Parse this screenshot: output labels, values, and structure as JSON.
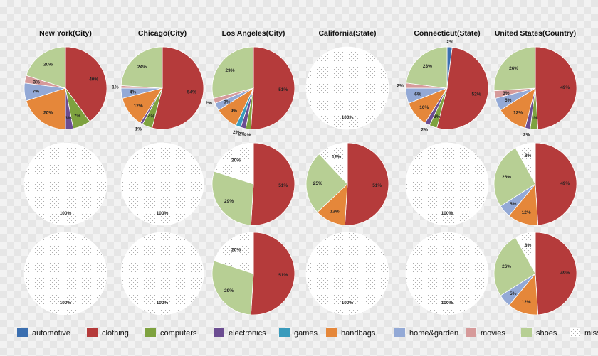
{
  "chart_data": {
    "type": "pie",
    "columns": [
      "New York(City)",
      "Chicago(City)",
      "Los Angeles(City)",
      "California(State)",
      "Connecticut(State)",
      "United States(Country)"
    ],
    "categories": [
      {
        "key": "automotive",
        "label": "automotive",
        "color": "#3b6fb0"
      },
      {
        "key": "clothing",
        "label": "clothing",
        "color": "#b53b3b"
      },
      {
        "key": "computers",
        "label": "computers",
        "color": "#7ea23f"
      },
      {
        "key": "electronics",
        "label": "electronics",
        "color": "#6c4d92"
      },
      {
        "key": "games",
        "label": "games",
        "color": "#3a9bbc"
      },
      {
        "key": "handbags",
        "label": "handbags",
        "color": "#e5873a"
      },
      {
        "key": "homegarden",
        "label": "home&garden",
        "color": "#93a9d6"
      },
      {
        "key": "movies",
        "label": "movies",
        "color": "#d69a9a"
      },
      {
        "key": "shoes",
        "label": "shoes",
        "color": "#b7cf94"
      },
      {
        "key": "missing",
        "label": "missing",
        "color": "#ffffff"
      }
    ],
    "pies": [
      {
        "row": 0,
        "col": 0,
        "slices": [
          {
            "cat": "clothing",
            "value": 40,
            "label": "40%"
          },
          {
            "cat": "computers",
            "value": 7,
            "label": "7%"
          },
          {
            "cat": "electronics",
            "value": 3,
            "label": "3%"
          },
          {
            "cat": "handbags",
            "value": 20,
            "label": "20%"
          },
          {
            "cat": "homegarden",
            "value": 7,
            "label": "7%"
          },
          {
            "cat": "movies",
            "value": 3,
            "label": "3%"
          },
          {
            "cat": "shoes",
            "value": 20,
            "label": "20%"
          }
        ]
      },
      {
        "row": 0,
        "col": 1,
        "slices": [
          {
            "cat": "clothing",
            "value": 54,
            "label": "54%"
          },
          {
            "cat": "computers",
            "value": 4,
            "label": "4%"
          },
          {
            "cat": "electronics",
            "value": 1,
            "label": "1%"
          },
          {
            "cat": "handbags",
            "value": 12,
            "label": "12%"
          },
          {
            "cat": "homegarden",
            "value": 4,
            "label": "4%"
          },
          {
            "cat": "movies",
            "value": 1,
            "label": "1%"
          },
          {
            "cat": "shoes",
            "value": 24,
            "label": "24%"
          }
        ]
      },
      {
        "row": 0,
        "col": 2,
        "slices": [
          {
            "cat": "clothing",
            "value": 51,
            "label": "51%"
          },
          {
            "cat": "computers",
            "value": 2,
            "label": "2%"
          },
          {
            "cat": "electronics",
            "value": 2,
            "label": "2%"
          },
          {
            "cat": "games",
            "value": 2,
            "label": "2%"
          },
          {
            "cat": "handbags",
            "value": 9,
            "label": "9%"
          },
          {
            "cat": "homegarden",
            "value": 3,
            "label": "3%"
          },
          {
            "cat": "movies",
            "value": 2,
            "label": "2%"
          },
          {
            "cat": "shoes",
            "value": 29,
            "label": "29%"
          }
        ]
      },
      {
        "row": 0,
        "col": 3,
        "slices": [
          {
            "cat": "missing",
            "value": 100,
            "label": "100%"
          }
        ]
      },
      {
        "row": 0,
        "col": 4,
        "slices": [
          {
            "cat": "automotive",
            "value": 2,
            "label": "2%"
          },
          {
            "cat": "clothing",
            "value": 52,
            "label": "52%"
          },
          {
            "cat": "computers",
            "value": 3,
            "label": "3%"
          },
          {
            "cat": "electronics",
            "value": 2,
            "label": "2%"
          },
          {
            "cat": "handbags",
            "value": 10,
            "label": "10%"
          },
          {
            "cat": "homegarden",
            "value": 6,
            "label": "6%"
          },
          {
            "cat": "movies",
            "value": 2,
            "label": "2%"
          },
          {
            "cat": "shoes",
            "value": 23,
            "label": "23%"
          }
        ]
      },
      {
        "row": 0,
        "col": 5,
        "slices": [
          {
            "cat": "clothing",
            "value": 49,
            "label": "49%"
          },
          {
            "cat": "computers",
            "value": 3,
            "label": "3%"
          },
          {
            "cat": "electronics",
            "value": 2,
            "label": "2%"
          },
          {
            "cat": "handbags",
            "value": 12,
            "label": "12%"
          },
          {
            "cat": "homegarden",
            "value": 5,
            "label": "5%"
          },
          {
            "cat": "movies",
            "value": 3,
            "label": "3%"
          },
          {
            "cat": "shoes",
            "value": 26,
            "label": "26%"
          }
        ]
      },
      {
        "row": 1,
        "col": 0,
        "slices": [
          {
            "cat": "missing",
            "value": 100,
            "label": "100%"
          }
        ]
      },
      {
        "row": 1,
        "col": 1,
        "slices": [
          {
            "cat": "missing",
            "value": 100,
            "label": "100%"
          }
        ]
      },
      {
        "row": 1,
        "col": 2,
        "slices": [
          {
            "cat": "clothing",
            "value": 51,
            "label": "51%"
          },
          {
            "cat": "shoes",
            "value": 29,
            "label": "29%"
          },
          {
            "cat": "missing",
            "value": 20,
            "label": "20%"
          }
        ]
      },
      {
        "row": 1,
        "col": 3,
        "slices": [
          {
            "cat": "clothing",
            "value": 51,
            "label": "51%"
          },
          {
            "cat": "handbags",
            "value": 12,
            "label": "12%"
          },
          {
            "cat": "shoes",
            "value": 25,
            "label": "25%"
          },
          {
            "cat": "missing",
            "value": 12,
            "label": "12%"
          }
        ]
      },
      {
        "row": 1,
        "col": 4,
        "slices": [
          {
            "cat": "missing",
            "value": 100,
            "label": "100%"
          }
        ]
      },
      {
        "row": 1,
        "col": 5,
        "slices": [
          {
            "cat": "clothing",
            "value": 49,
            "label": "49%"
          },
          {
            "cat": "handbags",
            "value": 12,
            "label": "12%"
          },
          {
            "cat": "homegarden",
            "value": 5,
            "label": "5%"
          },
          {
            "cat": "shoes",
            "value": 26,
            "label": "26%"
          },
          {
            "cat": "missing",
            "value": 8,
            "label": "8%"
          }
        ]
      },
      {
        "row": 2,
        "col": 0,
        "slices": [
          {
            "cat": "missing",
            "value": 100,
            "label": "100%"
          }
        ]
      },
      {
        "row": 2,
        "col": 1,
        "slices": [
          {
            "cat": "missing",
            "value": 100,
            "label": "100%"
          }
        ]
      },
      {
        "row": 2,
        "col": 2,
        "slices": [
          {
            "cat": "clothing",
            "value": 51,
            "label": "51%"
          },
          {
            "cat": "shoes",
            "value": 29,
            "label": "29%"
          },
          {
            "cat": "missing",
            "value": 20,
            "label": "20%"
          }
        ]
      },
      {
        "row": 2,
        "col": 3,
        "slices": [
          {
            "cat": "missing",
            "value": 100,
            "label": "100%"
          }
        ]
      },
      {
        "row": 2,
        "col": 4,
        "slices": [
          {
            "cat": "missing",
            "value": 100,
            "label": "100%"
          }
        ]
      },
      {
        "row": 2,
        "col": 5,
        "slices": [
          {
            "cat": "clothing",
            "value": 49,
            "label": "49%"
          },
          {
            "cat": "handbags",
            "value": 12,
            "label": "12%"
          },
          {
            "cat": "homegarden",
            "value": 5,
            "label": "5%"
          },
          {
            "cat": "shoes",
            "value": 26,
            "label": "26%"
          },
          {
            "cat": "missing",
            "value": 8,
            "label": "8%"
          }
        ]
      }
    ]
  }
}
